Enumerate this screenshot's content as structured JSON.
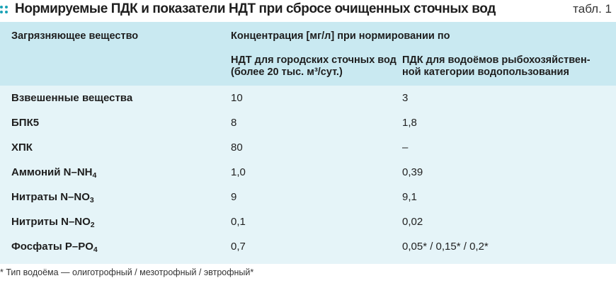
{
  "header": {
    "title": "Нормируемые ПДК и показатели НДТ при сбросе очищенных сточных вод",
    "table_label": "табл. 1"
  },
  "colors": {
    "accent": "#1aa2b5",
    "header_bg": "#c9e9f1",
    "body_bg": "#e5f4f8"
  },
  "table": {
    "col_substance": "Загрязняющее вещество",
    "col_concentration": "Концентрация [мг/л] при нормировании по",
    "col_ndt": "НДТ для городских сточных вод (более 20 тыс. м³/сут.)",
    "col_pdk": "ПДК для водоёмов рыбохозяйствен-ной категории водопользования",
    "rows": [
      {
        "substance": "Взвешенные вещества",
        "ndt": "10",
        "pdk": "3"
      },
      {
        "substance": "БПК5",
        "ndt": "8",
        "pdk": "1,8"
      },
      {
        "substance": "ХПК",
        "ndt": "80",
        "pdk": "–"
      },
      {
        "substance": "Аммоний N–NH",
        "substance_sub": "4",
        "ndt": "1,0",
        "pdk": "0,39"
      },
      {
        "substance": "Нитраты N–NO",
        "substance_sub": "3",
        "ndt": "9",
        "pdk": "9,1"
      },
      {
        "substance": "Нитриты N–NO",
        "substance_sub": "2",
        "ndt": "0,1",
        "pdk": "0,02"
      },
      {
        "substance": "Фосфаты P–PO",
        "substance_sub": "4",
        "ndt": "0,7",
        "pdk": "0,05* / 0,15* / 0,2*"
      }
    ]
  },
  "footnote": "* Тип водоёма — олиготрофный / мезотрофный / эвтрофный*"
}
